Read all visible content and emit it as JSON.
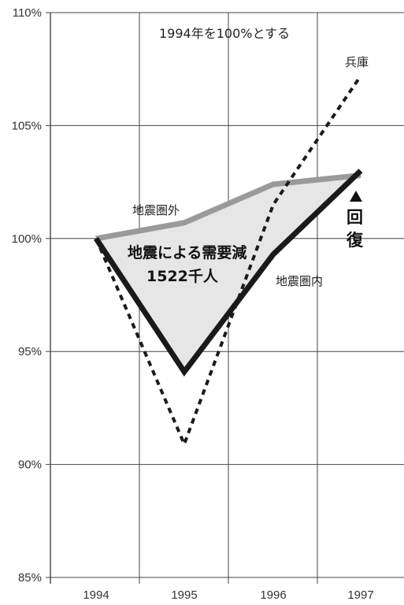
{
  "chart_data": {
    "type": "line",
    "x": [
      "1994",
      "1995",
      "1996",
      "1997"
    ],
    "ylim": [
      85,
      110
    ],
    "y_ticks": [
      "85%",
      "90%",
      "95%",
      "100%",
      "105%",
      "110%"
    ],
    "grid": true,
    "series": [
      {
        "name": "地震圏外",
        "values": [
          100.0,
          100.7,
          102.4,
          102.8
        ],
        "color": "#9a9a9a",
        "style": "solid"
      },
      {
        "name": "地震圏内",
        "values": [
          100.0,
          94.1,
          99.3,
          103.0
        ],
        "color": "#1a1a1a",
        "style": "solid"
      },
      {
        "name": "兵庫",
        "values": [
          100.0,
          90.9,
          101.5,
          107.2
        ],
        "color": "#1a1a1a",
        "style": "dashed"
      }
    ],
    "shaded_region": {
      "between": [
        "地震圏外",
        "地震圏内"
      ],
      "color": "#e6e6e6"
    },
    "annotations": {
      "note": "1994年を100%とする",
      "area_label_line1": "地震による需要減",
      "area_label_line2": "1522千人",
      "recovery_char1": "回",
      "recovery_char2": "復"
    }
  },
  "colors": {
    "grid": "#444444",
    "shade": "#e6e6e6"
  }
}
